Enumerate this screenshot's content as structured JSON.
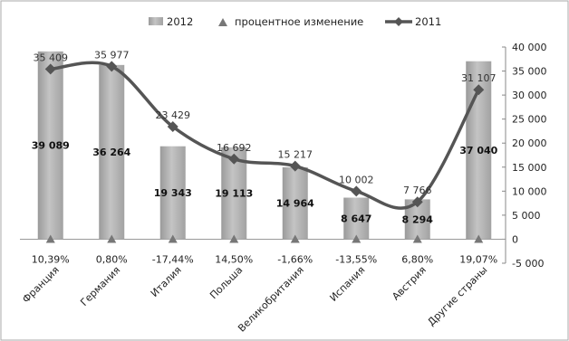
{
  "chart_data": {
    "type": "bar",
    "categories": [
      "Франция",
      "Германия",
      "Италия",
      "Польша",
      "Великобритания",
      "Испания",
      "Австрия",
      "Другие страны"
    ],
    "series": [
      {
        "name": "2012",
        "kind": "bar",
        "values": [
          39089,
          36264,
          19343,
          19113,
          14964,
          8647,
          8294,
          37040
        ],
        "labels": [
          "39 089",
          "36 264",
          "19 343",
          "19 113",
          "14 964",
          "8 647",
          "8 294",
          "37 040"
        ]
      },
      {
        "name": "процентное изменение",
        "kind": "marker",
        "values": [
          10.39,
          0.8,
          -17.44,
          14.5,
          -1.66,
          -13.55,
          6.8,
          19.07
        ],
        "labels": [
          "10,39%",
          "0,80%",
          "-17,44%",
          "14,50%",
          "-1,66%",
          "-13,55%",
          "6,80%",
          "19,07%"
        ]
      },
      {
        "name": "2011",
        "kind": "line",
        "values": [
          35409,
          35977,
          23429,
          16692,
          15217,
          10002,
          7766,
          31107
        ],
        "labels": [
          "35 409",
          "35 977",
          "23 429",
          "16 692",
          "15 217",
          "10 002",
          "7 766",
          "31 107"
        ]
      }
    ],
    "y_axis": {
      "position": "right",
      "min": -5000,
      "max": 40000,
      "step": 5000,
      "tick_labels": [
        "-5 000",
        "0",
        "5 000",
        "10 000",
        "15 000",
        "20 000",
        "25 000",
        "30 000",
        "35 000",
        "40 000"
      ]
    },
    "legend": {
      "position": "top"
    },
    "grid": false,
    "colors": {
      "bar": "#a8a8a8",
      "line": "#555555",
      "marker": "#777777"
    }
  }
}
